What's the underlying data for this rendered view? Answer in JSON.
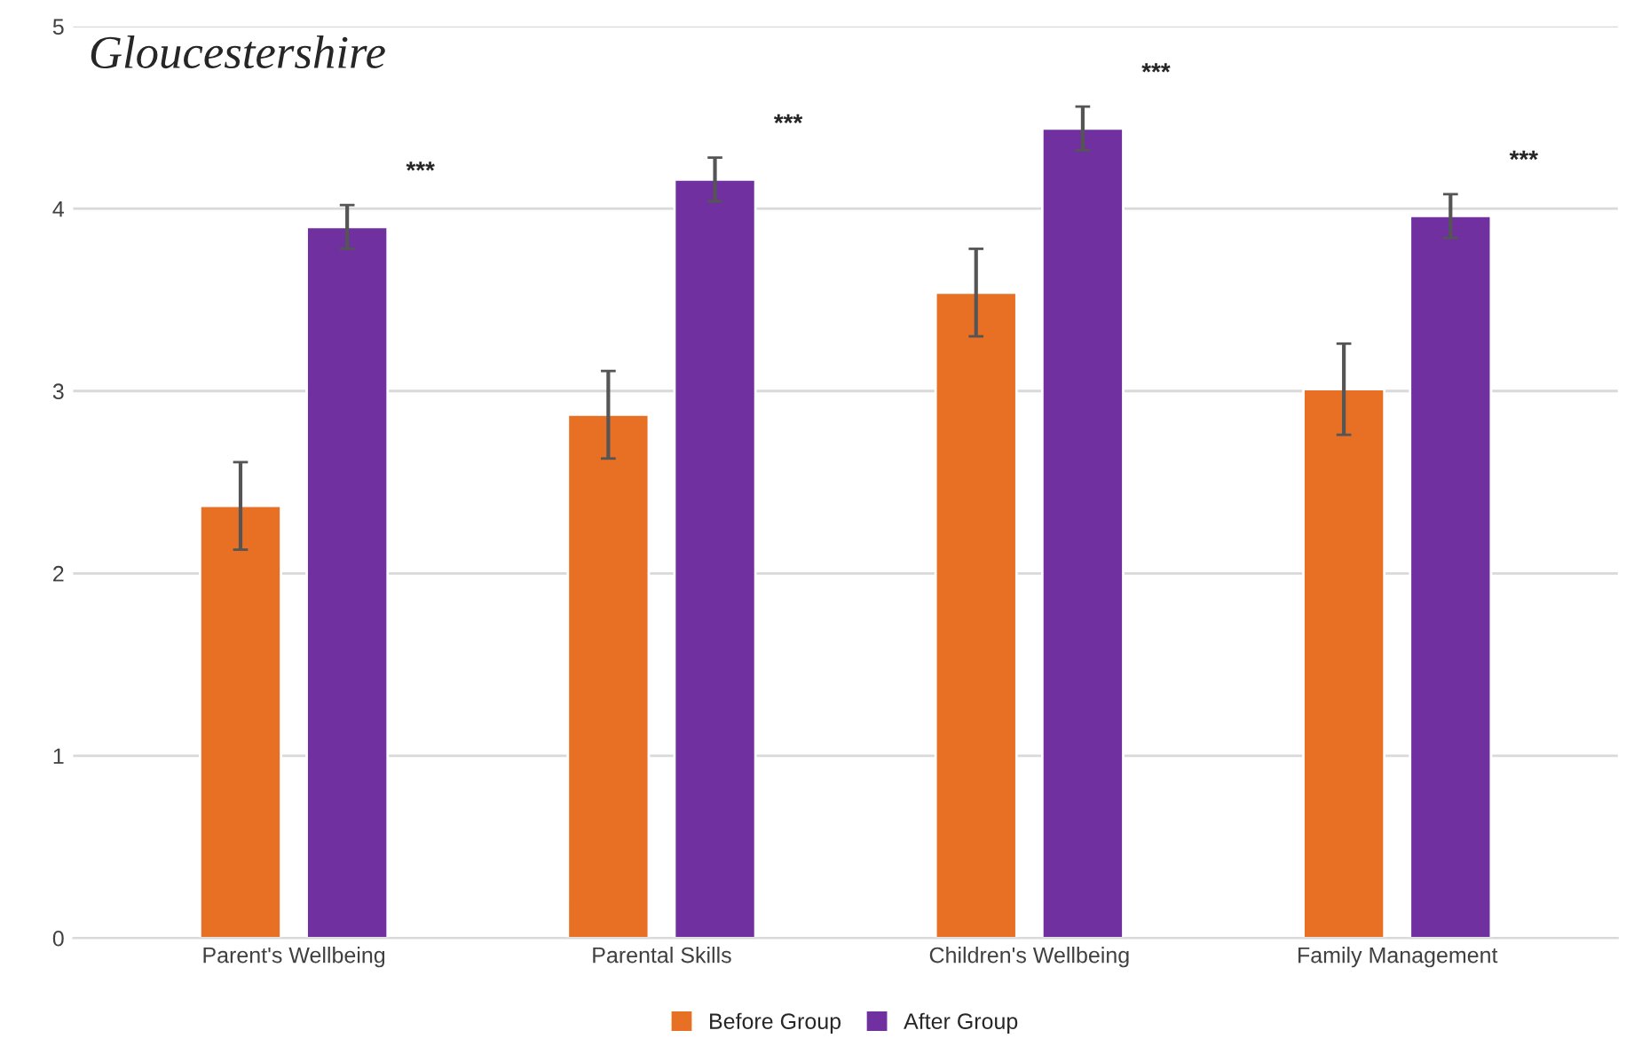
{
  "chart_data": {
    "type": "bar",
    "title": "Gloucestershire",
    "categories": [
      "Parent's Wellbeing",
      "Parental Skills",
      "Children's Wellbeing",
      "Family Management"
    ],
    "series": [
      {
        "name": "Before Group",
        "color": "#e87025",
        "values": [
          2.37,
          2.87,
          3.54,
          3.01
        ],
        "errors": [
          0.24,
          0.24,
          0.24,
          0.25
        ]
      },
      {
        "name": "After Group",
        "color": "#7030a0",
        "values": [
          3.9,
          4.16,
          4.44,
          3.96
        ],
        "errors": [
          0.12,
          0.12,
          0.12,
          0.12
        ]
      }
    ],
    "ylim": [
      0,
      5
    ],
    "yticks": [
      0,
      1,
      2,
      3,
      4,
      5
    ],
    "grid": "y",
    "legend": "bottom",
    "annotations": [
      "***",
      "***",
      "***",
      "***"
    ]
  }
}
